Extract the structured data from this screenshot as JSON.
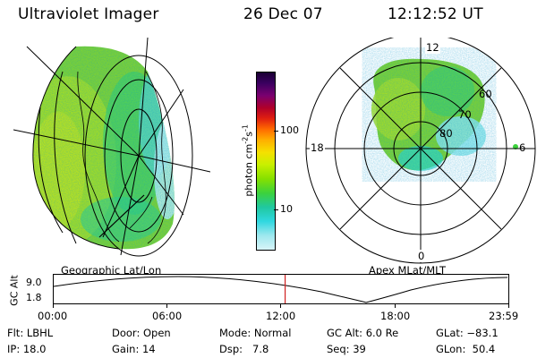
{
  "header": {
    "title": "Ultraviolet Imager",
    "date": "26 Dec 07",
    "time": "12:12:52 UT"
  },
  "geo_panel": {
    "label": "Geographic Lat/Lon"
  },
  "polar_panel": {
    "label": "Apex MLat/MLT",
    "mlt_labels": [
      "12",
      "18",
      "6",
      "0"
    ],
    "mlat_labels": [
      "60",
      "70",
      "80"
    ]
  },
  "colorbar": {
    "unit_label": "photon cm",
    "unit_exp": "-2",
    "unit_s": "s",
    "unit_s_exp": "-1",
    "ticks": [
      "100",
      "10"
    ],
    "colors": [
      "#1a0033",
      "#3a0060",
      "#7a0070",
      "#b0002a",
      "#e02010",
      "#ff6a00",
      "#ffae00",
      "#f5e000",
      "#c8f000",
      "#86e000",
      "#3cd23c",
      "#20c8a0",
      "#30d8e0",
      "#9ee8ee",
      "#d8f4f8"
    ]
  },
  "altitude_strip": {
    "ylabel": "GC Alt",
    "y_top": "9.0",
    "y_bottom": "1.8",
    "time_ticks": [
      "00:00",
      "06:00",
      "12:00",
      "18:00",
      "23:59"
    ],
    "current_time_fraction": 0.509
  },
  "status": {
    "flt_label": "Flt:",
    "flt_value": "LBHL",
    "ip_label": "IP:",
    "ip_value": "18.0",
    "door_label": "Door:",
    "door_value": "Open",
    "gain_label": "Gain:",
    "gain_value": "14",
    "mode_label": "Mode:",
    "mode_value": "Normal",
    "dsp_label": "Dsp:",
    "dsp_value": "7.8",
    "gcalt_label": "GC Alt:",
    "gcalt_value": "6.0 Re",
    "seq_label": "Seq:",
    "seq_value": "39",
    "glat_label": "GLat:",
    "glat_value": "−83.1",
    "glon_label": "GLon:",
    "glon_value": "50.4"
  }
}
